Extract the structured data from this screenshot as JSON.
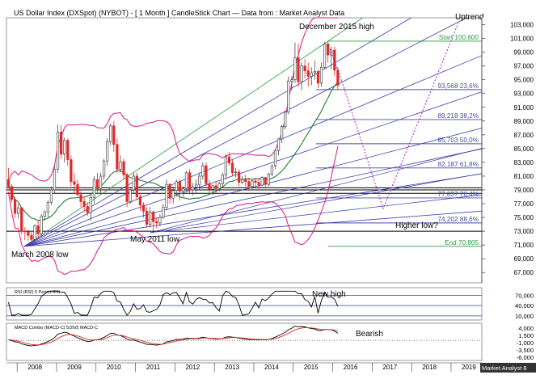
{
  "chart_data": {
    "type": "candlestick",
    "title": "US Dollar Index (DXSpot) (NYBOT) -  [ 1 Month ] CandleStick Chart — Data from : Market Analyst Data",
    "interval": "1 Month",
    "x_axis": {
      "labels": [
        "2008",
        "2009",
        "2010",
        "2011",
        "2012",
        "2013",
        "2014",
        "2015",
        "2016",
        "2017",
        "2018",
        "2019"
      ]
    },
    "y_axis": {
      "ticks": [
        "103,000",
        "101,000",
        "99,000",
        "97,000",
        "95,000",
        "93,000",
        "91,000",
        "89,000",
        "87,000",
        "85,000",
        "83,000",
        "81,000",
        "79,000",
        "77,000",
        "75,000",
        "73,000",
        "71,000",
        "69,000",
        "67,000"
      ],
      "range": [
        65.5,
        104
      ]
    },
    "candles": [
      {
        "o": 80.5,
        "h": 82.2,
        "l": 79.2,
        "c": 79.5
      },
      {
        "o": 79.5,
        "h": 79.8,
        "l": 77.2,
        "c": 77.6
      },
      {
        "o": 77.6,
        "h": 78.0,
        "l": 75.0,
        "c": 75.6
      },
      {
        "o": 75.6,
        "h": 77.0,
        "l": 74.9,
        "c": 76.4
      },
      {
        "o": 76.4,
        "h": 76.5,
        "l": 72.5,
        "c": 73.0
      },
      {
        "o": 73.0,
        "h": 73.6,
        "l": 71.7,
        "c": 72.9
      },
      {
        "o": 72.9,
        "h": 73.2,
        "l": 71.6,
        "c": 72.4
      },
      {
        "o": 72.4,
        "h": 73.0,
        "l": 71.2,
        "c": 71.8
      },
      {
        "o": 71.8,
        "h": 74.0,
        "l": 71.3,
        "c": 73.8
      },
      {
        "o": 73.8,
        "h": 74.5,
        "l": 72.0,
        "c": 72.6
      },
      {
        "o": 72.6,
        "h": 75.5,
        "l": 72.2,
        "c": 75.2
      },
      {
        "o": 75.2,
        "h": 76.0,
        "l": 74.5,
        "c": 75.8
      },
      {
        "o": 75.8,
        "h": 77.5,
        "l": 75.0,
        "c": 77.2
      },
      {
        "o": 77.2,
        "h": 79.5,
        "l": 76.8,
        "c": 79.0
      },
      {
        "o": 79.0,
        "h": 82.5,
        "l": 78.5,
        "c": 82.0
      },
      {
        "o": 82.0,
        "h": 88.5,
        "l": 81.5,
        "c": 87.4
      },
      {
        "o": 87.4,
        "h": 88.4,
        "l": 83.5,
        "c": 84.2
      },
      {
        "o": 84.2,
        "h": 86.6,
        "l": 83.0,
        "c": 86.2
      },
      {
        "o": 86.2,
        "h": 86.5,
        "l": 82.5,
        "c": 83.4
      },
      {
        "o": 83.4,
        "h": 84.0,
        "l": 79.5,
        "c": 80.2
      },
      {
        "o": 80.2,
        "h": 81.5,
        "l": 78.5,
        "c": 79.8
      },
      {
        "o": 79.8,
        "h": 80.5,
        "l": 78.0,
        "c": 78.3
      },
      {
        "o": 78.3,
        "h": 78.8,
        "l": 76.5,
        "c": 77.3
      },
      {
        "o": 77.3,
        "h": 78.0,
        "l": 76.0,
        "c": 76.6
      },
      {
        "o": 76.6,
        "h": 77.2,
        "l": 75.2,
        "c": 75.7
      },
      {
        "o": 75.7,
        "h": 78.5,
        "l": 74.5,
        "c": 77.9
      },
      {
        "o": 77.9,
        "h": 81.0,
        "l": 77.0,
        "c": 80.5
      },
      {
        "o": 80.5,
        "h": 81.5,
        "l": 78.5,
        "c": 79.2
      },
      {
        "o": 79.2,
        "h": 81.5,
        "l": 78.5,
        "c": 81.0
      },
      {
        "o": 81.0,
        "h": 83.5,
        "l": 80.5,
        "c": 83.2
      },
      {
        "o": 83.2,
        "h": 86.5,
        "l": 82.5,
        "c": 86.0
      },
      {
        "o": 86.0,
        "h": 88.7,
        "l": 85.5,
        "c": 88.3
      },
      {
        "o": 88.3,
        "h": 89.0,
        "l": 84.5,
        "c": 85.6
      },
      {
        "o": 85.6,
        "h": 86.5,
        "l": 81.5,
        "c": 82.0
      },
      {
        "o": 82.0,
        "h": 84.0,
        "l": 81.5,
        "c": 83.1
      },
      {
        "o": 83.1,
        "h": 83.5,
        "l": 80.5,
        "c": 81.2
      },
      {
        "o": 81.2,
        "h": 81.5,
        "l": 76.5,
        "c": 77.3
      },
      {
        "o": 77.3,
        "h": 79.5,
        "l": 77.0,
        "c": 79.0
      },
      {
        "o": 79.0,
        "h": 81.5,
        "l": 78.5,
        "c": 81.0
      },
      {
        "o": 81.0,
        "h": 81.5,
        "l": 77.5,
        "c": 78.0
      },
      {
        "o": 78.0,
        "h": 78.5,
        "l": 76.0,
        "c": 76.8
      },
      {
        "o": 76.8,
        "h": 77.2,
        "l": 75.0,
        "c": 75.9
      },
      {
        "o": 75.9,
        "h": 76.5,
        "l": 73.5,
        "c": 74.0
      },
      {
        "o": 74.0,
        "h": 76.5,
        "l": 73.5,
        "c": 75.8
      },
      {
        "o": 75.8,
        "h": 76.0,
        "l": 73.0,
        "c": 74.4
      },
      {
        "o": 74.4,
        "h": 75.0,
        "l": 73.4,
        "c": 74.2
      },
      {
        "o": 74.2,
        "h": 75.5,
        "l": 73.7,
        "c": 75.0
      },
      {
        "o": 75.0,
        "h": 77.0,
        "l": 74.8,
        "c": 76.5
      },
      {
        "o": 76.5,
        "h": 80.5,
        "l": 76.0,
        "c": 79.8
      },
      {
        "o": 79.8,
        "h": 80.0,
        "l": 77.0,
        "c": 77.8
      },
      {
        "o": 77.8,
        "h": 79.5,
        "l": 77.0,
        "c": 78.9
      },
      {
        "o": 78.9,
        "h": 80.5,
        "l": 78.0,
        "c": 80.2
      },
      {
        "o": 80.2,
        "h": 80.5,
        "l": 77.5,
        "c": 78.8
      },
      {
        "o": 78.8,
        "h": 79.5,
        "l": 78.0,
        "c": 79.2
      },
      {
        "o": 79.2,
        "h": 81.8,
        "l": 78.8,
        "c": 81.5
      },
      {
        "o": 81.5,
        "h": 82.0,
        "l": 78.5,
        "c": 79.0
      },
      {
        "o": 79.0,
        "h": 80.0,
        "l": 78.2,
        "c": 79.4
      },
      {
        "o": 79.4,
        "h": 80.5,
        "l": 78.5,
        "c": 79.8
      },
      {
        "o": 79.8,
        "h": 81.5,
        "l": 79.0,
        "c": 81.0
      },
      {
        "o": 81.0,
        "h": 83.0,
        "l": 80.5,
        "c": 82.5
      },
      {
        "o": 82.5,
        "h": 83.0,
        "l": 79.5,
        "c": 79.9
      },
      {
        "o": 79.9,
        "h": 80.5,
        "l": 78.5,
        "c": 79.1
      },
      {
        "o": 79.1,
        "h": 79.8,
        "l": 78.2,
        "c": 79.6
      },
      {
        "o": 79.6,
        "h": 80.2,
        "l": 78.6,
        "c": 79.2
      },
      {
        "o": 79.2,
        "h": 80.2,
        "l": 78.8,
        "c": 79.9
      },
      {
        "o": 79.9,
        "h": 81.5,
        "l": 79.4,
        "c": 81.2
      },
      {
        "o": 81.2,
        "h": 84.2,
        "l": 80.5,
        "c": 83.8
      },
      {
        "o": 83.8,
        "h": 84.5,
        "l": 82.5,
        "c": 82.9
      },
      {
        "o": 82.9,
        "h": 83.5,
        "l": 81.0,
        "c": 81.5
      },
      {
        "o": 81.5,
        "h": 82.2,
        "l": 80.8,
        "c": 81.6
      },
      {
        "o": 81.6,
        "h": 82.0,
        "l": 79.5,
        "c": 80.1
      },
      {
        "o": 80.1,
        "h": 81.0,
        "l": 79.8,
        "c": 80.5
      },
      {
        "o": 80.5,
        "h": 81.2,
        "l": 79.5,
        "c": 80.2
      },
      {
        "o": 80.2,
        "h": 80.8,
        "l": 78.9,
        "c": 79.5
      },
      {
        "o": 79.5,
        "h": 80.5,
        "l": 79.0,
        "c": 80.3
      },
      {
        "o": 80.3,
        "h": 80.8,
        "l": 79.4,
        "c": 80.1
      },
      {
        "o": 80.1,
        "h": 80.8,
        "l": 79.0,
        "c": 79.7
      },
      {
        "o": 79.7,
        "h": 81.0,
        "l": 79.5,
        "c": 80.8
      },
      {
        "o": 80.8,
        "h": 80.9,
        "l": 79.2,
        "c": 79.8
      },
      {
        "o": 79.8,
        "h": 81.5,
        "l": 79.5,
        "c": 81.3
      },
      {
        "o": 81.3,
        "h": 82.7,
        "l": 81.0,
        "c": 82.5
      },
      {
        "o": 82.5,
        "h": 84.8,
        "l": 82.0,
        "c": 84.7
      },
      {
        "o": 84.7,
        "h": 86.5,
        "l": 84.0,
        "c": 86.4
      },
      {
        "o": 86.4,
        "h": 88.5,
        "l": 85.8,
        "c": 88.2
      },
      {
        "o": 88.2,
        "h": 90.5,
        "l": 87.8,
        "c": 90.3
      },
      {
        "o": 90.3,
        "h": 95.5,
        "l": 90.0,
        "c": 94.8
      },
      {
        "o": 94.8,
        "h": 95.5,
        "l": 93.5,
        "c": 95.0
      },
      {
        "o": 95.0,
        "h": 100.4,
        "l": 94.5,
        "c": 98.2
      },
      {
        "o": 98.2,
        "h": 100.2,
        "l": 94.0,
        "c": 94.7
      },
      {
        "o": 94.7,
        "h": 97.5,
        "l": 93.5,
        "c": 97.0
      },
      {
        "o": 97.0,
        "h": 98.0,
        "l": 95.2,
        "c": 96.3
      },
      {
        "o": 96.3,
        "h": 97.5,
        "l": 94.0,
        "c": 95.5
      },
      {
        "o": 95.5,
        "h": 96.8,
        "l": 94.2,
        "c": 96.0
      },
      {
        "o": 96.0,
        "h": 97.8,
        "l": 95.0,
        "c": 96.2
      },
      {
        "o": 96.2,
        "h": 96.5,
        "l": 93.8,
        "c": 94.5
      },
      {
        "o": 94.5,
        "h": 97.5,
        "l": 94.0,
        "c": 96.8
      },
      {
        "o": 96.8,
        "h": 100.5,
        "l": 96.5,
        "c": 100.2
      },
      {
        "o": 100.2,
        "h": 100.5,
        "l": 97.5,
        "c": 98.6
      },
      {
        "o": 98.6,
        "h": 99.8,
        "l": 96.5,
        "c": 99.3
      },
      {
        "o": 99.3,
        "h": 99.8,
        "l": 95.5,
        "c": 96.4
      },
      {
        "o": 96.4,
        "h": 96.8,
        "l": 93.5,
        "c": 94.2
      }
    ],
    "start_year": 2007.75,
    "candle_span_years": 1,
    "horizontal_levels": [
      {
        "value": 100.6,
        "label": "Start 100,600",
        "color": "#2e9a3e"
      },
      {
        "value": 93.568,
        "label": "93,568 23,6%",
        "color": "#4a4aa6"
      },
      {
        "value": 89.218,
        "label": "89,218 38,2%",
        "color": "#4a4aa6"
      },
      {
        "value": 85.703,
        "label": "85,703 50,0%",
        "color": "#4a4aa6"
      },
      {
        "value": 82.187,
        "label": "82,187 61,8%",
        "color": "#4a4aa6"
      },
      {
        "value": 77.837,
        "label": "77,837 76,4%",
        "color": "#4a4aa6"
      },
      {
        "value": 74.202,
        "label": "74,202 88,6%",
        "color": "#4a4aa6"
      },
      {
        "value": 70.805,
        "label": "End 70,805",
        "color": "#2e9a3e"
      }
    ],
    "annotations": [
      {
        "text": "December 2015 high",
        "pos": "top-right"
      },
      {
        "text": "Uptrend",
        "pos": "top-right"
      },
      {
        "text": "Higher low?",
        "pos": "right"
      },
      {
        "text": "May 2011 low",
        "pos": "bottom"
      },
      {
        "text": "March 2008 low",
        "pos": "bottom-left"
      }
    ],
    "rsi_panel": {
      "label": "RSI (RSI) 5 Period RSI",
      "ticks": [
        "70,000",
        "40,000",
        "10,000"
      ],
      "annotation": "New high"
    },
    "macd_panel": {
      "label": "MACD Combo (MACD-C) 5/26/5 MACD-C",
      "ticks": [
        "4,000",
        "1,500",
        "-1,000",
        "-3,500",
        "-6,000"
      ],
      "annotation": "Bearish"
    },
    "watermark": "Market Analyst 8",
    "colors": {
      "up": "#4a4a4a",
      "down": "#e02a2a",
      "bollinger": "#e0157a",
      "ma": "#1f7a2e",
      "fan": "#3a3ab0",
      "projection": "#a020c0",
      "fib_green": "#2e9a3e"
    }
  }
}
